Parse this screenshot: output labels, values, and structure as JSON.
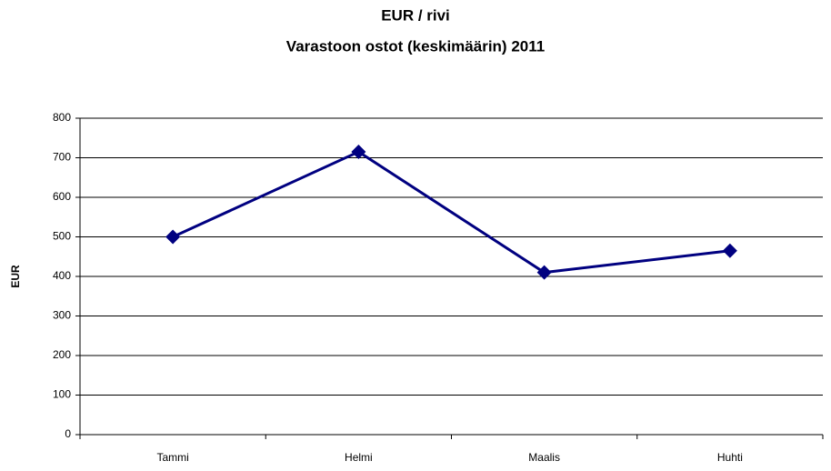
{
  "chart_data": {
    "type": "line",
    "title": "EUR / rivi",
    "subtitle": "Varastoon ostot (keskimäärin) 2011",
    "y_label": "EUR",
    "categories": [
      "Tammi",
      "Helmi",
      "Maalis",
      "Huhti"
    ],
    "series": [
      {
        "name": "EUR",
        "color": "#000080",
        "values": [
          500,
          715,
          410,
          465
        ]
      }
    ],
    "ylim": [
      0,
      800
    ],
    "yticks": [
      0,
      100,
      200,
      300,
      400,
      500,
      600,
      700,
      800
    ],
    "grid": true,
    "legend": false
  }
}
